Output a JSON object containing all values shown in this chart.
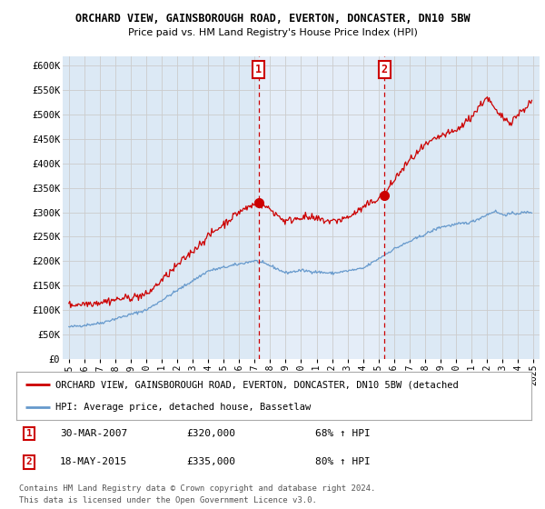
{
  "title1": "ORCHARD VIEW, GAINSBOROUGH ROAD, EVERTON, DONCASTER, DN10 5BW",
  "title2": "Price paid vs. HM Land Registry's House Price Index (HPI)",
  "ylabel_ticks": [
    "£0",
    "£50K",
    "£100K",
    "£150K",
    "£200K",
    "£250K",
    "£300K",
    "£350K",
    "£400K",
    "£450K",
    "£500K",
    "£550K",
    "£600K"
  ],
  "ytick_values": [
    0,
    50000,
    100000,
    150000,
    200000,
    250000,
    300000,
    350000,
    400000,
    450000,
    500000,
    550000,
    600000
  ],
  "xlim_start": 1994.6,
  "xlim_end": 2025.4,
  "ylim": [
    0,
    620000
  ],
  "plot_bg_color": "#dce9f5",
  "highlight_color": "#e8f0fa",
  "red_line_color": "#cc0000",
  "blue_line_color": "#6699cc",
  "grid_color": "#cccccc",
  "marker1_x": 2007.25,
  "marker1_y": 320000,
  "marker2_x": 2015.38,
  "marker2_y": 335000,
  "legend_red": "ORCHARD VIEW, GAINSBOROUGH ROAD, EVERTON, DONCASTER, DN10 5BW (detached",
  "legend_blue": "HPI: Average price, detached house, Bassetlaw",
  "annotation1_label": "1",
  "annotation1_date": "30-MAR-2007",
  "annotation1_price": "£320,000",
  "annotation1_hpi": "68% ↑ HPI",
  "annotation2_label": "2",
  "annotation2_date": "18-MAY-2015",
  "annotation2_price": "£335,000",
  "annotation2_hpi": "80% ↑ HPI",
  "footer1": "Contains HM Land Registry data © Crown copyright and database right 2024.",
  "footer2": "This data is licensed under the Open Government Licence v3.0."
}
